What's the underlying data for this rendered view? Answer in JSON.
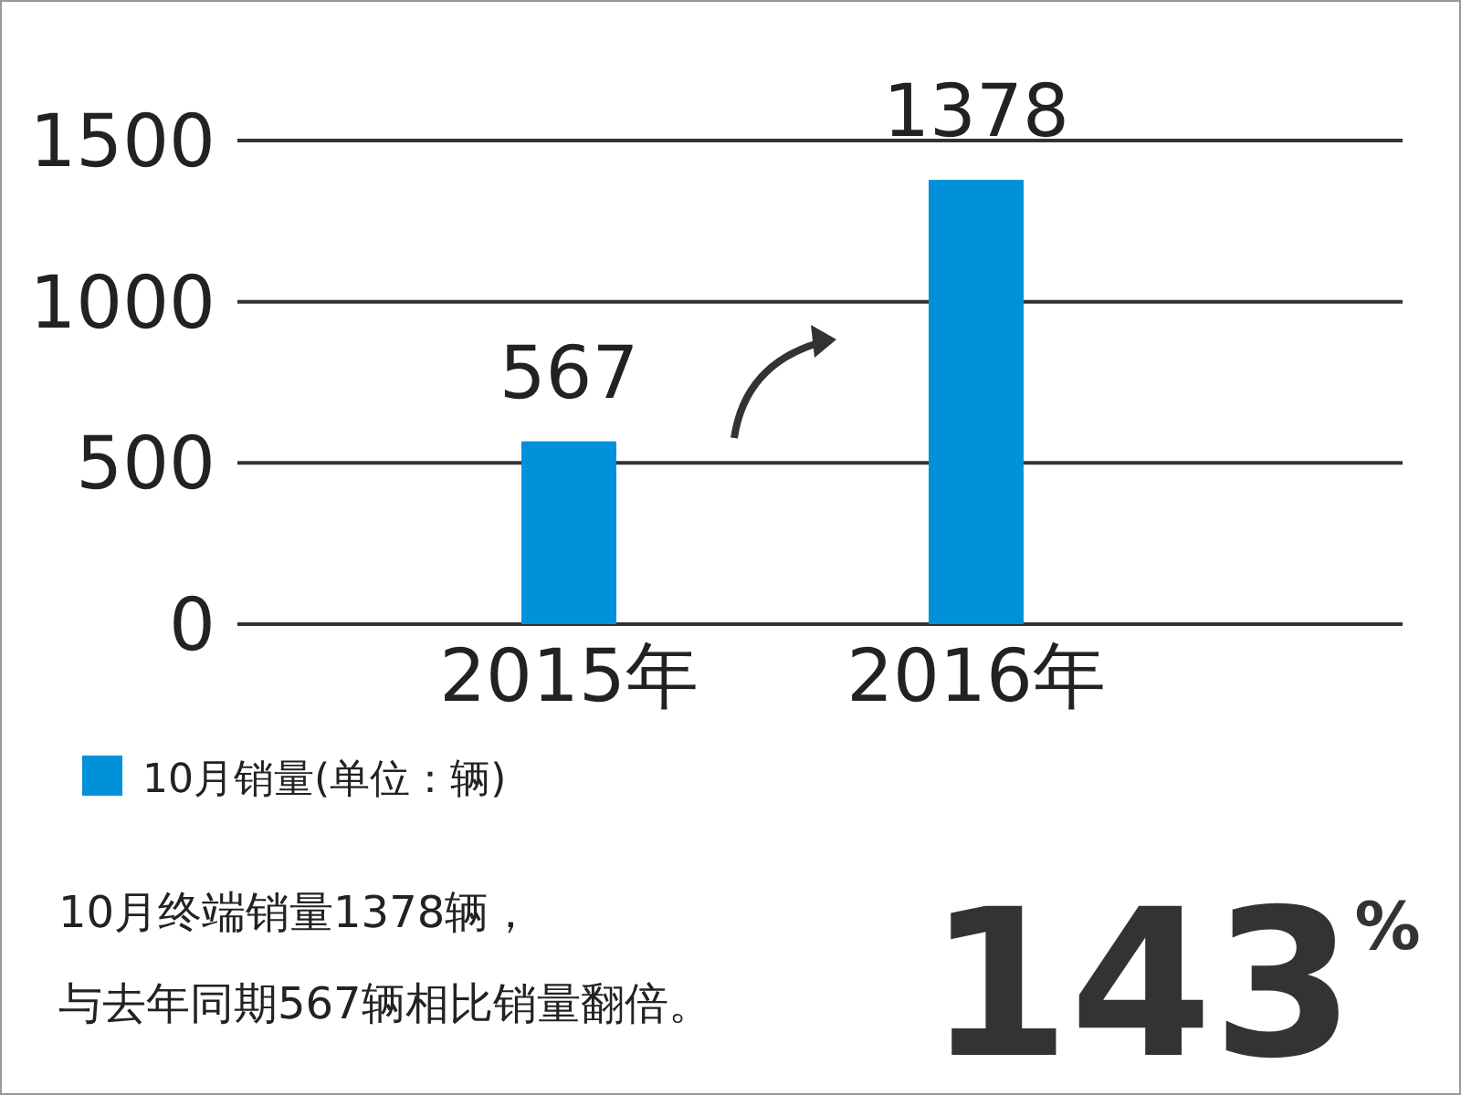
{
  "chart_data": {
    "type": "bar",
    "categories": [
      "2015年",
      "2016年"
    ],
    "series": [
      {
        "name": "10月销量(单位：辆)",
        "color": "#0091da",
        "values": [
          567,
          1378
        ]
      }
    ],
    "ylim": [
      0,
      1500
    ],
    "yticks": [
      0,
      500,
      1000,
      1500
    ],
    "grid": "y",
    "legend": "bottom left",
    "data_labels": true,
    "annotations": [
      "10月终端销量1378辆，",
      "与去年同期567辆相比销量翻倍。",
      "143$^{%}$"
    ]
  }
}
